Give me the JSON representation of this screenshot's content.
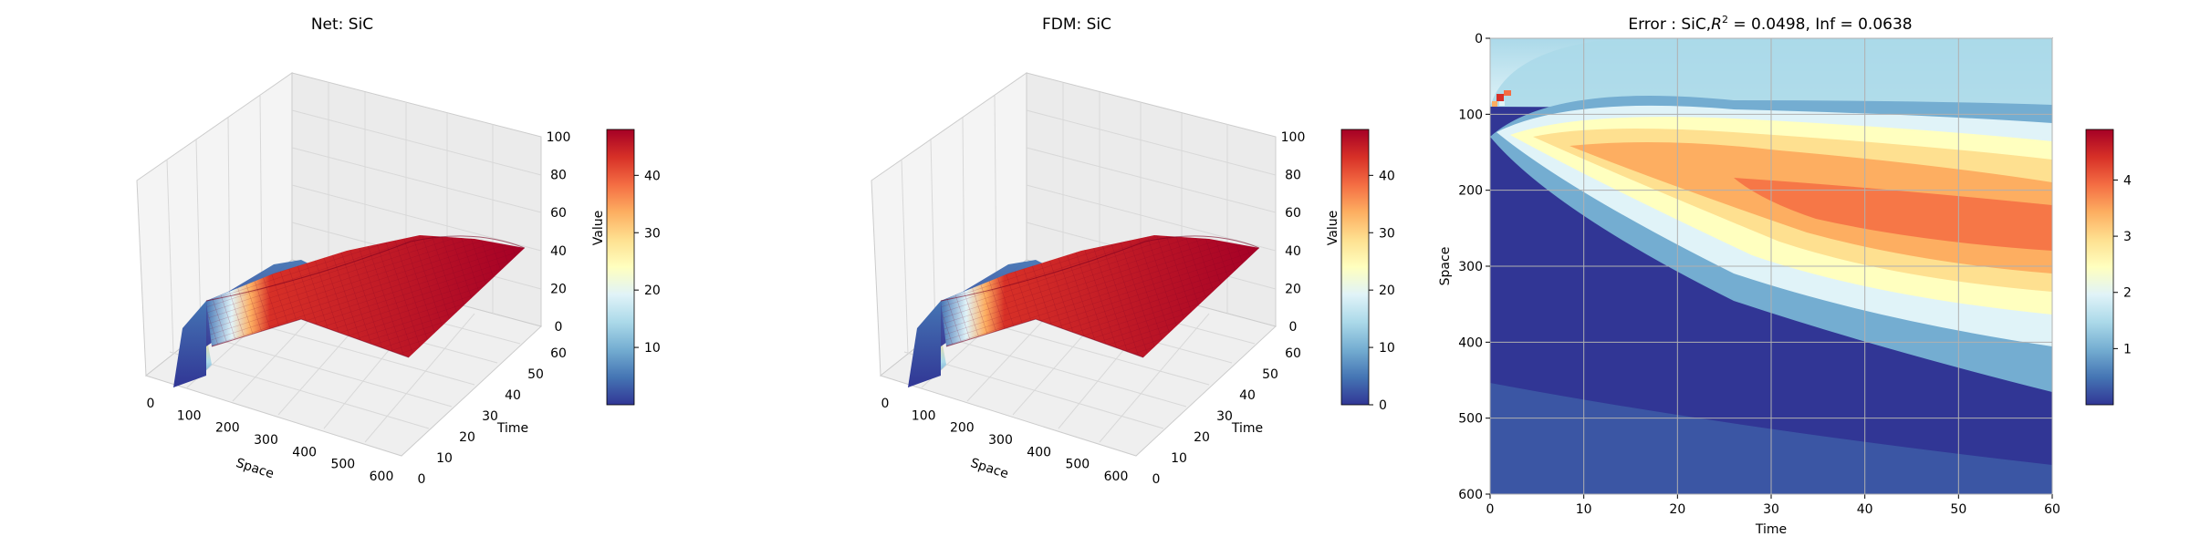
{
  "chart_data": [
    {
      "type": "surface3d",
      "title": "Net: SiC",
      "xlabel": "Space",
      "ylabel": "Time",
      "zlabel": "Value",
      "xticks": [
        0,
        100,
        200,
        300,
        400,
        500,
        600
      ],
      "yticks": [
        0,
        10,
        20,
        30,
        40,
        50,
        60
      ],
      "zticks": [
        0,
        20,
        40,
        60,
        80,
        100
      ],
      "xlim": [
        0,
        600
      ],
      "ylim": [
        0,
        60
      ],
      "zlim": [
        0,
        100
      ],
      "colormap": "RdYlBu_r",
      "colorbar": {
        "ticks": [
          10,
          20,
          30,
          40
        ],
        "range": [
          0,
          48
        ]
      },
      "surface_description": "value rises to ~48 over space 0-600 and time 0-60, steep near space~100"
    },
    {
      "type": "surface3d",
      "title": "FDM: SiC",
      "xlabel": "Space",
      "ylabel": "Time",
      "zlabel": "Value",
      "xticks": [
        0,
        100,
        200,
        300,
        400,
        500,
        600
      ],
      "yticks": [
        0,
        10,
        20,
        30,
        40,
        50,
        60
      ],
      "zticks": [
        0,
        20,
        40,
        60,
        80,
        100
      ],
      "xlim": [
        0,
        600
      ],
      "ylim": [
        0,
        60
      ],
      "zlim": [
        0,
        100
      ],
      "colormap": "RdYlBu_r",
      "colorbar": {
        "ticks": [
          0,
          10,
          20,
          30,
          40
        ],
        "range": [
          0,
          48
        ]
      }
    },
    {
      "type": "heatmap",
      "title_prefix": "Error : SiC,",
      "title_r2": "R",
      "title_r2_sup": "2",
      "title_suffix": " = 0.0498, Inf = 0.0638",
      "xlabel": "Time",
      "ylabel": "Space",
      "xticks": [
        0,
        10,
        20,
        30,
        40,
        50,
        60
      ],
      "yticks": [
        0,
        100,
        200,
        300,
        400,
        500,
        600
      ],
      "xlim": [
        0,
        60
      ],
      "ylim": [
        0,
        600
      ],
      "grid": true,
      "colormap": "RdYlBu_r",
      "colorbar": {
        "ticks": [
          1,
          2,
          3,
          4
        ],
        "range": [
          0,
          4.9
        ]
      }
    }
  ]
}
